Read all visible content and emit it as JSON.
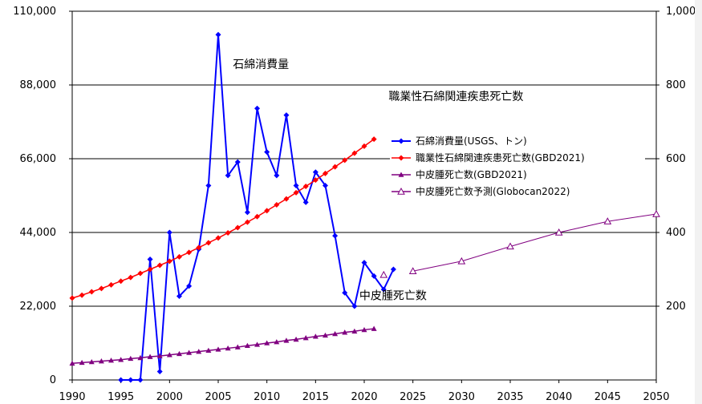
{
  "chart_data": {
    "type": "line",
    "x_axis": {
      "min": 1990,
      "max": 2050,
      "ticks": [
        1990,
        1995,
        2000,
        2005,
        2010,
        2015,
        2020,
        2025,
        2030,
        2035,
        2040,
        2045,
        2050
      ]
    },
    "y_left": {
      "min": 0,
      "max": 110000,
      "ticks": [
        0,
        22000,
        44000,
        66000,
        88000,
        110000
      ],
      "tick_labels": [
        "0",
        "22,000",
        "44,000",
        "66,000",
        "88,000",
        "110,000"
      ]
    },
    "y_right": {
      "min": 0,
      "max": 1000,
      "ticks": [
        200,
        400,
        600,
        800,
        1000
      ],
      "tick_labels": [
        "200",
        "400",
        "600",
        "800",
        "1,000"
      ]
    },
    "gridlines_left": [
      22000,
      44000,
      66000,
      88000
    ],
    "legend_placement": "right",
    "series": [
      {
        "name": "石綿消費量(USGS、トン)",
        "axis": "left",
        "color": "#0000ff",
        "marker": "diamond",
        "points": [
          [
            1995,
            0
          ],
          [
            1996,
            0
          ],
          [
            1997,
            0
          ],
          [
            1998,
            36000
          ],
          [
            1999,
            2500
          ],
          [
            2000,
            44000
          ],
          [
            2001,
            25000
          ],
          [
            2002,
            28000
          ],
          [
            2003,
            39000
          ],
          [
            2004,
            58000
          ],
          [
            2005,
            103000
          ],
          [
            2006,
            61000
          ],
          [
            2007,
            65000
          ],
          [
            2008,
            50000
          ],
          [
            2009,
            81000
          ],
          [
            2010,
            68000
          ],
          [
            2011,
            61000
          ],
          [
            2012,
            79000
          ],
          [
            2013,
            58000
          ],
          [
            2014,
            53000
          ],
          [
            2015,
            62000
          ],
          [
            2016,
            58000
          ],
          [
            2017,
            43000
          ],
          [
            2018,
            26000
          ],
          [
            2019,
            22000
          ],
          [
            2020,
            35000
          ],
          [
            2021,
            31000
          ],
          [
            2022,
            27000
          ],
          [
            2023,
            33000
          ]
        ]
      },
      {
        "name": "職業性石綿関連疾患死亡数(GBD2021)",
        "axis": "right",
        "color": "#ff0000",
        "marker": "diamond",
        "points": [
          [
            1990,
            222
          ],
          [
            1991,
            230
          ],
          [
            1992,
            239
          ],
          [
            1993,
            248
          ],
          [
            1994,
            258
          ],
          [
            1995,
            268
          ],
          [
            1996,
            278
          ],
          [
            1997,
            289
          ],
          [
            1998,
            300
          ],
          [
            1999,
            311
          ],
          [
            2000,
            322
          ],
          [
            2001,
            334
          ],
          [
            2002,
            346
          ],
          [
            2003,
            359
          ],
          [
            2004,
            372
          ],
          [
            2005,
            385
          ],
          [
            2006,
            399
          ],
          [
            2007,
            413
          ],
          [
            2008,
            428
          ],
          [
            2009,
            443
          ],
          [
            2010,
            459
          ],
          [
            2011,
            475
          ],
          [
            2012,
            491
          ],
          [
            2013,
            508
          ],
          [
            2014,
            525
          ],
          [
            2015,
            542
          ],
          [
            2016,
            560
          ],
          [
            2017,
            578
          ],
          [
            2018,
            596
          ],
          [
            2019,
            615
          ],
          [
            2020,
            634
          ],
          [
            2021,
            653
          ]
        ]
      },
      {
        "name": "中皮腫死亡数(GBD2021)",
        "axis": "right",
        "color": "#800080",
        "marker": "triangle",
        "points": [
          [
            1990,
            45
          ],
          [
            1991,
            47
          ],
          [
            1992,
            49
          ],
          [
            1993,
            51
          ],
          [
            1994,
            53
          ],
          [
            1995,
            55
          ],
          [
            1996,
            58
          ],
          [
            1997,
            60
          ],
          [
            1998,
            63
          ],
          [
            1999,
            65
          ],
          [
            2000,
            68
          ],
          [
            2001,
            71
          ],
          [
            2002,
            74
          ],
          [
            2003,
            77
          ],
          [
            2004,
            80
          ],
          [
            2005,
            83
          ],
          [
            2006,
            86
          ],
          [
            2007,
            89
          ],
          [
            2008,
            93
          ],
          [
            2009,
            96
          ],
          [
            2010,
            100
          ],
          [
            2011,
            103
          ],
          [
            2012,
            107
          ],
          [
            2013,
            110
          ],
          [
            2014,
            114
          ],
          [
            2015,
            118
          ],
          [
            2016,
            121
          ],
          [
            2017,
            125
          ],
          [
            2018,
            129
          ],
          [
            2019,
            132
          ],
          [
            2020,
            136
          ],
          [
            2021,
            139
          ]
        ]
      },
      {
        "name": "中皮腫死亡数予測(Globocan2022)",
        "axis": "right",
        "color": "#800080",
        "marker": "triangle-open",
        "points": [
          [
            2022,
            285
          ],
          [
            2025,
            295
          ],
          [
            2030,
            322
          ],
          [
            2035,
            362
          ],
          [
            2040,
            400
          ],
          [
            2045,
            430
          ],
          [
            2050,
            450
          ]
        ]
      }
    ],
    "annotations": [
      {
        "text": "石綿消費量",
        "x": 2006.5,
        "y_left": 93000
      },
      {
        "text": "職業性石綿関連疾患死亡数",
        "x": 2022.5,
        "y_left": 83500
      },
      {
        "text": "中皮腫死亡数",
        "x": 2019.5,
        "y_left": 24000
      }
    ]
  }
}
